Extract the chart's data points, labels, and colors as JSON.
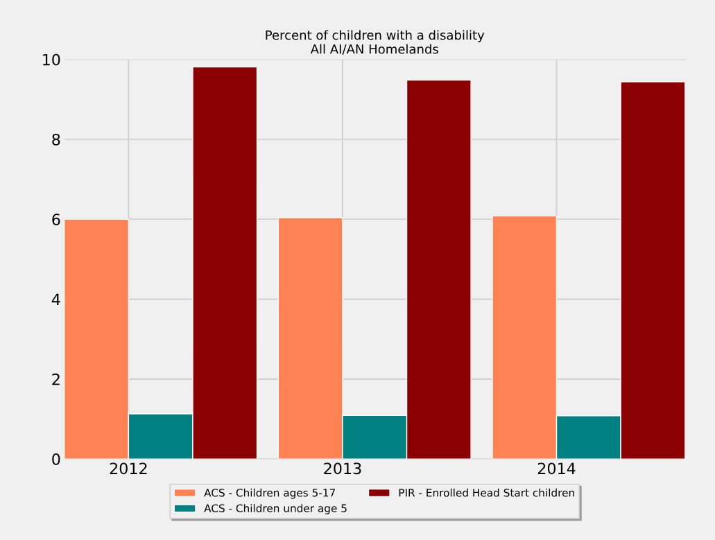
{
  "chart_data": {
    "type": "bar",
    "title": "Percent of children with a disability\nAll AI/AN Homelands",
    "categories": [
      "2012",
      "2013",
      "2014"
    ],
    "series": [
      {
        "name": "ACS - Children ages 5-17",
        "color": "#ff8254",
        "values": [
          6.0,
          6.04,
          6.08
        ]
      },
      {
        "name": "ACS - Children under age 5",
        "color": "#008080",
        "values": [
          1.13,
          1.09,
          1.08
        ]
      },
      {
        "name": "PIR - Enrolled Head Start children",
        "color": "#8b0000",
        "values": [
          9.81,
          9.48,
          9.44
        ]
      }
    ],
    "ylim": [
      0,
      10
    ],
    "yticks": [
      0,
      2,
      4,
      6,
      8,
      10
    ],
    "grid": true,
    "legend": "bottom"
  }
}
